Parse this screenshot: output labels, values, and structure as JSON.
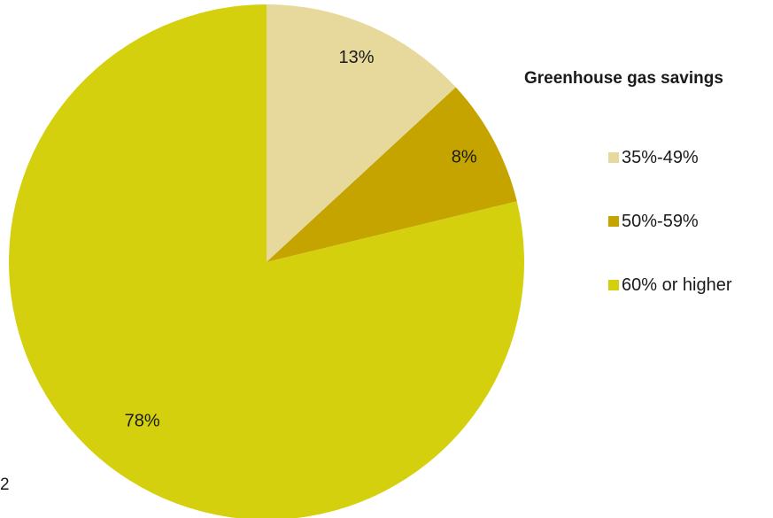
{
  "page_number": "2",
  "chart_data": {
    "type": "pie",
    "title": "",
    "legend_title": "Greenhouse gas savings",
    "legend_position": "right",
    "start_angle_deg": 0,
    "direction": "clockwise",
    "slices": [
      {
        "category": "35%-49%",
        "value": 13,
        "label": "13%",
        "color": "#E6D99B"
      },
      {
        "category": "50%-59%",
        "value": 8,
        "label": "8%",
        "color": "#C6A400"
      },
      {
        "category": "60% or higher",
        "value": 78,
        "label": "78%",
        "color": "#D4D00D"
      }
    ]
  }
}
